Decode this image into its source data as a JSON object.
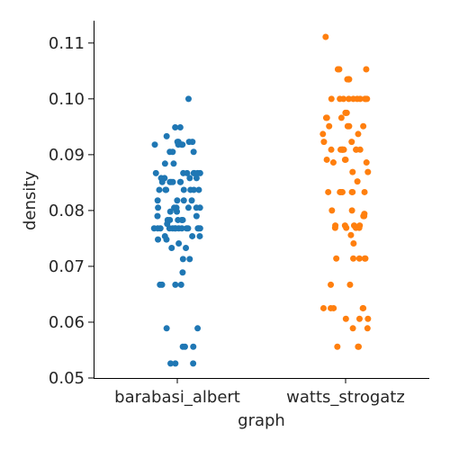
{
  "chart_data": {
    "type": "scatter",
    "title": "",
    "xlabel": "graph",
    "ylabel": "density",
    "categories": [
      "barabasi_albert",
      "watts_strogatz"
    ],
    "ylim": [
      0.05,
      0.114
    ],
    "yticks": [
      "0.05",
      "0.06",
      "0.07",
      "0.08",
      "0.09",
      "0.10",
      "0.11"
    ],
    "grid": false,
    "legend": "none",
    "series": [
      {
        "category": "barabasi_albert",
        "color": "#1f77b4",
        "values": [
          0.1,
          0.0949,
          0.0949,
          0.0933,
          0.0923,
          0.0923,
          0.0923,
          0.0923,
          0.0918,
          0.0918,
          0.0918,
          0.0918,
          0.0905,
          0.0905,
          0.0905,
          0.0884,
          0.0884,
          0.0867,
          0.0867,
          0.0867,
          0.0867,
          0.0867,
          0.0867,
          0.0867,
          0.0858,
          0.0858,
          0.0858,
          0.0858,
          0.0851,
          0.0851,
          0.0851,
          0.0851,
          0.0851,
          0.0851,
          0.0837,
          0.0837,
          0.0837,
          0.0837,
          0.0837,
          0.0837,
          0.0837,
          0.0818,
          0.0818,
          0.0818,
          0.0818,
          0.0805,
          0.0805,
          0.0805,
          0.0805,
          0.0805,
          0.0805,
          0.0798,
          0.0798,
          0.079,
          0.079,
          0.0783,
          0.0783,
          0.0783,
          0.0783,
          0.0783,
          0.0776,
          0.0768,
          0.0768,
          0.0768,
          0.0768,
          0.0768,
          0.0768,
          0.0768,
          0.0768,
          0.0768,
          0.0768,
          0.0768,
          0.0768,
          0.0768,
          0.0768,
          0.0754,
          0.0754,
          0.0754,
          0.0748,
          0.0748,
          0.0741,
          0.0733,
          0.0733,
          0.0713,
          0.0713,
          0.0689,
          0.0667,
          0.0667,
          0.0667,
          0.0667,
          0.0589,
          0.0589,
          0.0556,
          0.0556,
          0.0556,
          0.0526,
          0.0526,
          0.0526
        ]
      },
      {
        "category": "watts_strogatz",
        "color": "#ff7f0e",
        "values": [
          0.1111,
          0.1053,
          0.1053,
          0.1053,
          0.1035,
          0.1035,
          0.1035,
          0.1035,
          0.1,
          0.1,
          0.1,
          0.1,
          0.1,
          0.1,
          0.1,
          0.1,
          0.1,
          0.1,
          0.0975,
          0.0975,
          0.0975,
          0.0966,
          0.0966,
          0.0966,
          0.0951,
          0.0951,
          0.0951,
          0.0951,
          0.0937,
          0.0937,
          0.0923,
          0.0923,
          0.0909,
          0.0909,
          0.0909,
          0.0909,
          0.0909,
          0.0909,
          0.0909,
          0.0909,
          0.0909,
          0.0891,
          0.0891,
          0.0891,
          0.0886,
          0.0886,
          0.0869,
          0.0869,
          0.0852,
          0.0833,
          0.0833,
          0.0833,
          0.0833,
          0.0833,
          0.0833,
          0.0833,
          0.08,
          0.08,
          0.0794,
          0.079,
          0.079,
          0.0773,
          0.0773,
          0.0773,
          0.0773,
          0.0769,
          0.0769,
          0.0769,
          0.0769,
          0.0756,
          0.0741,
          0.0714,
          0.0714,
          0.0714,
          0.0714,
          0.0714,
          0.0667,
          0.0667,
          0.0625,
          0.0625,
          0.0625,
          0.0625,
          0.0625,
          0.0606,
          0.0606,
          0.0606,
          0.0589,
          0.0589,
          0.0556,
          0.0556,
          0.0556
        ]
      }
    ]
  }
}
